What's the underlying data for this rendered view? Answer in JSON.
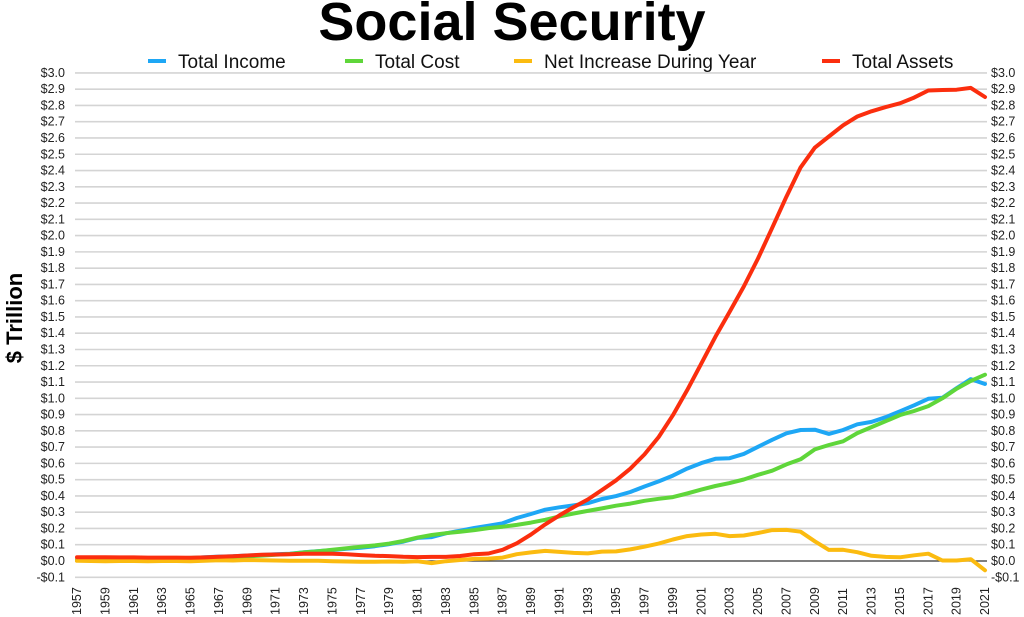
{
  "chart_data": {
    "type": "line",
    "title": "Social Security",
    "ylabel": "$ Trillion",
    "xlabel": "",
    "ylim": [
      -0.1,
      3.0
    ],
    "ytick_step": 0.1,
    "y_tick_format": "$0.0",
    "xlim": [
      1957,
      2021
    ],
    "xtick_step": 2,
    "grid": true,
    "legend_placement": "top",
    "x": [
      1957,
      1958,
      1959,
      1960,
      1961,
      1962,
      1963,
      1964,
      1965,
      1966,
      1967,
      1968,
      1969,
      1970,
      1971,
      1972,
      1973,
      1974,
      1975,
      1976,
      1977,
      1978,
      1979,
      1980,
      1981,
      1982,
      1983,
      1984,
      1985,
      1986,
      1987,
      1988,
      1989,
      1990,
      1991,
      1992,
      1993,
      1994,
      1995,
      1996,
      1997,
      1998,
      1999,
      2000,
      2001,
      2002,
      2003,
      2004,
      2005,
      2006,
      2007,
      2008,
      2009,
      2010,
      2011,
      2012,
      2013,
      2014,
      2015,
      2016,
      2017,
      2018,
      2019,
      2020,
      2021
    ],
    "series": [
      {
        "name": "Total Income",
        "color": "#1ea7f5",
        "values": [
          0.008,
          0.009,
          0.01,
          0.012,
          0.013,
          0.013,
          0.016,
          0.017,
          0.018,
          0.023,
          0.027,
          0.029,
          0.034,
          0.037,
          0.041,
          0.045,
          0.054,
          0.061,
          0.067,
          0.075,
          0.082,
          0.091,
          0.104,
          0.119,
          0.142,
          0.147,
          0.17,
          0.186,
          0.203,
          0.217,
          0.232,
          0.264,
          0.289,
          0.315,
          0.33,
          0.342,
          0.355,
          0.381,
          0.399,
          0.424,
          0.458,
          0.489,
          0.525,
          0.568,
          0.602,
          0.628,
          0.632,
          0.658,
          0.702,
          0.745,
          0.785,
          0.805,
          0.807,
          0.781,
          0.805,
          0.84,
          0.855,
          0.884,
          0.92,
          0.957,
          0.997,
          1.003,
          1.062,
          1.118,
          1.088
        ]
      },
      {
        "name": "Total Cost",
        "color": "#5fd63a",
        "values": [
          0.007,
          0.009,
          0.011,
          0.012,
          0.013,
          0.015,
          0.016,
          0.017,
          0.019,
          0.021,
          0.022,
          0.026,
          0.028,
          0.033,
          0.038,
          0.043,
          0.053,
          0.06,
          0.069,
          0.078,
          0.087,
          0.096,
          0.107,
          0.123,
          0.144,
          0.16,
          0.171,
          0.18,
          0.19,
          0.202,
          0.211,
          0.222,
          0.236,
          0.253,
          0.274,
          0.292,
          0.308,
          0.323,
          0.34,
          0.353,
          0.37,
          0.382,
          0.393,
          0.415,
          0.439,
          0.461,
          0.479,
          0.501,
          0.53,
          0.555,
          0.594,
          0.625,
          0.686,
          0.713,
          0.736,
          0.786,
          0.823,
          0.859,
          0.897,
          0.922,
          0.952,
          1.0,
          1.059,
          1.107,
          1.145
        ]
      },
      {
        "name": "Net Increase During Year",
        "color": "#fbbb10",
        "values": [
          0.001,
          0.0,
          -0.001,
          0.0,
          0.0,
          -0.002,
          0.0,
          0.0,
          -0.001,
          0.002,
          0.005,
          0.003,
          0.006,
          0.004,
          0.003,
          0.002,
          0.001,
          0.001,
          -0.002,
          -0.003,
          -0.005,
          -0.005,
          -0.003,
          -0.004,
          -0.002,
          -0.013,
          -0.001,
          0.006,
          0.013,
          0.015,
          0.021,
          0.042,
          0.053,
          0.062,
          0.056,
          0.05,
          0.047,
          0.058,
          0.059,
          0.071,
          0.088,
          0.107,
          0.132,
          0.153,
          0.163,
          0.167,
          0.153,
          0.157,
          0.172,
          0.19,
          0.191,
          0.18,
          0.121,
          0.068,
          0.069,
          0.054,
          0.032,
          0.025,
          0.023,
          0.035,
          0.045,
          0.003,
          0.003,
          0.011,
          -0.057
        ]
      },
      {
        "name": "Total Assets",
        "color": "#fb2e0e",
        "values": [
          0.023,
          0.023,
          0.023,
          0.022,
          0.022,
          0.021,
          0.021,
          0.021,
          0.02,
          0.022,
          0.026,
          0.029,
          0.034,
          0.038,
          0.04,
          0.042,
          0.044,
          0.045,
          0.044,
          0.041,
          0.036,
          0.032,
          0.03,
          0.026,
          0.024,
          0.025,
          0.025,
          0.031,
          0.042,
          0.046,
          0.069,
          0.109,
          0.163,
          0.225,
          0.28,
          0.331,
          0.378,
          0.436,
          0.496,
          0.567,
          0.655,
          0.762,
          0.896,
          1.049,
          1.213,
          1.378,
          1.531,
          1.687,
          1.859,
          2.048,
          2.239,
          2.419,
          2.54,
          2.609,
          2.678,
          2.732,
          2.764,
          2.79,
          2.813,
          2.848,
          2.892,
          2.895,
          2.897,
          2.908,
          2.852
        ]
      }
    ]
  }
}
